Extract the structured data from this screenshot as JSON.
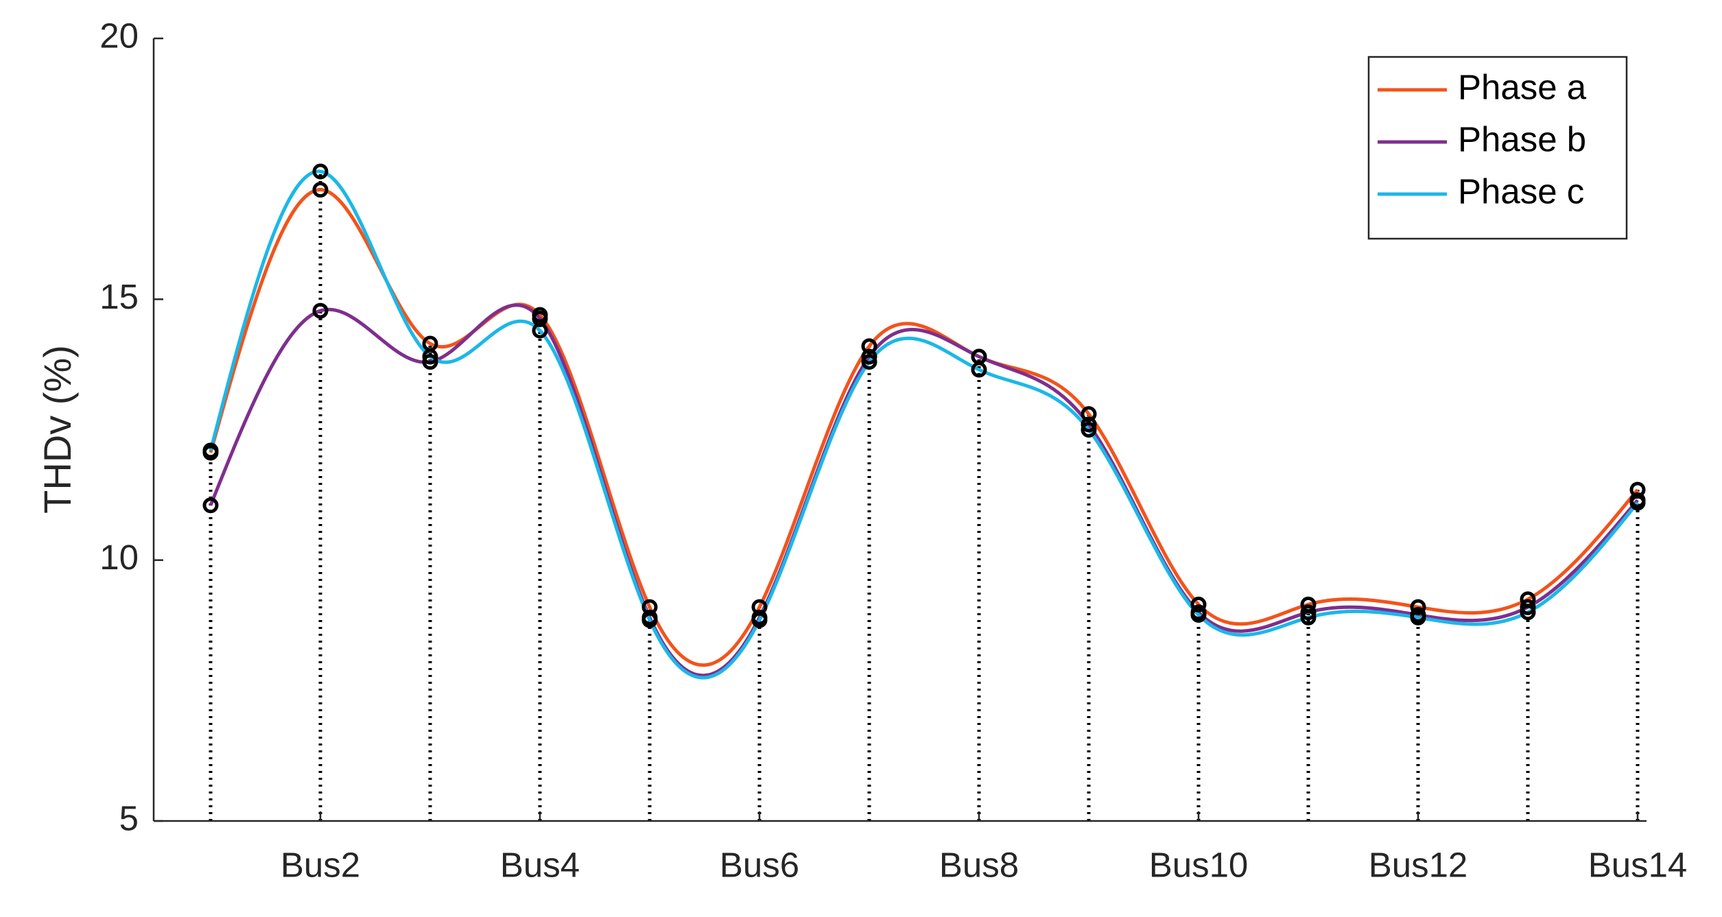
{
  "chart_data": {
    "type": "line",
    "ylabel": "THDv (%)",
    "categories": [
      null,
      "Bus2",
      null,
      "Bus4",
      null,
      "Bus6",
      null,
      "Bus8",
      null,
      "Bus10",
      null,
      "Bus12",
      null,
      "Bus14"
    ],
    "series": [
      {
        "name": "Phase a",
        "color": "#f2541b",
        "values": [
          12.06,
          17.1,
          14.15,
          14.7,
          9.1,
          9.1,
          14.1,
          13.9,
          12.8,
          9.15,
          9.15,
          9.1,
          9.25,
          11.35
        ]
      },
      {
        "name": "Phase b",
        "color": "#7e2f8e",
        "values": [
          11.05,
          14.78,
          13.8,
          14.63,
          8.9,
          8.9,
          13.9,
          13.9,
          12.6,
          9.0,
          9.0,
          8.95,
          9.1,
          11.15
        ]
      },
      {
        "name": "Phase c",
        "color": "#1cb7e8",
        "values": [
          12.1,
          17.45,
          13.9,
          14.4,
          8.85,
          8.85,
          13.8,
          13.65,
          12.5,
          8.95,
          8.9,
          8.9,
          9.0,
          11.1
        ]
      }
    ],
    "ylim": [
      5,
      20
    ],
    "yticks": [
      5,
      10,
      15,
      20
    ],
    "legend": "northeast"
  }
}
